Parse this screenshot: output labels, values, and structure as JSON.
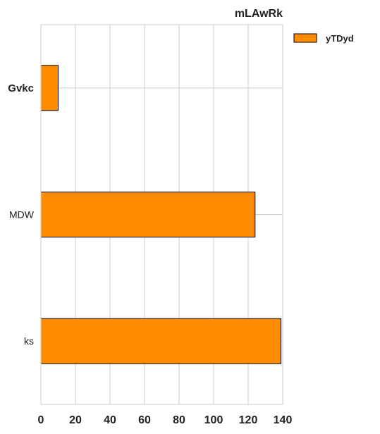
{
  "chart_data": {
    "type": "bar",
    "orientation": "horizontal",
    "title": "mLAwRk",
    "xlabel": "",
    "ylabel": "",
    "categories": [
      "Gvkc",
      "MDW",
      "ks"
    ],
    "series": [
      {
        "name": "yTDyd",
        "values": [
          10,
          124,
          139
        ],
        "color": "#ff8c00"
      }
    ],
    "xlim": [
      0,
      140
    ],
    "x_ticks": [
      0,
      20,
      40,
      60,
      80,
      100,
      120,
      140
    ],
    "grid": true,
    "legend_position": "outside-top-right",
    "bold_categories": [
      "Gvkc"
    ]
  }
}
